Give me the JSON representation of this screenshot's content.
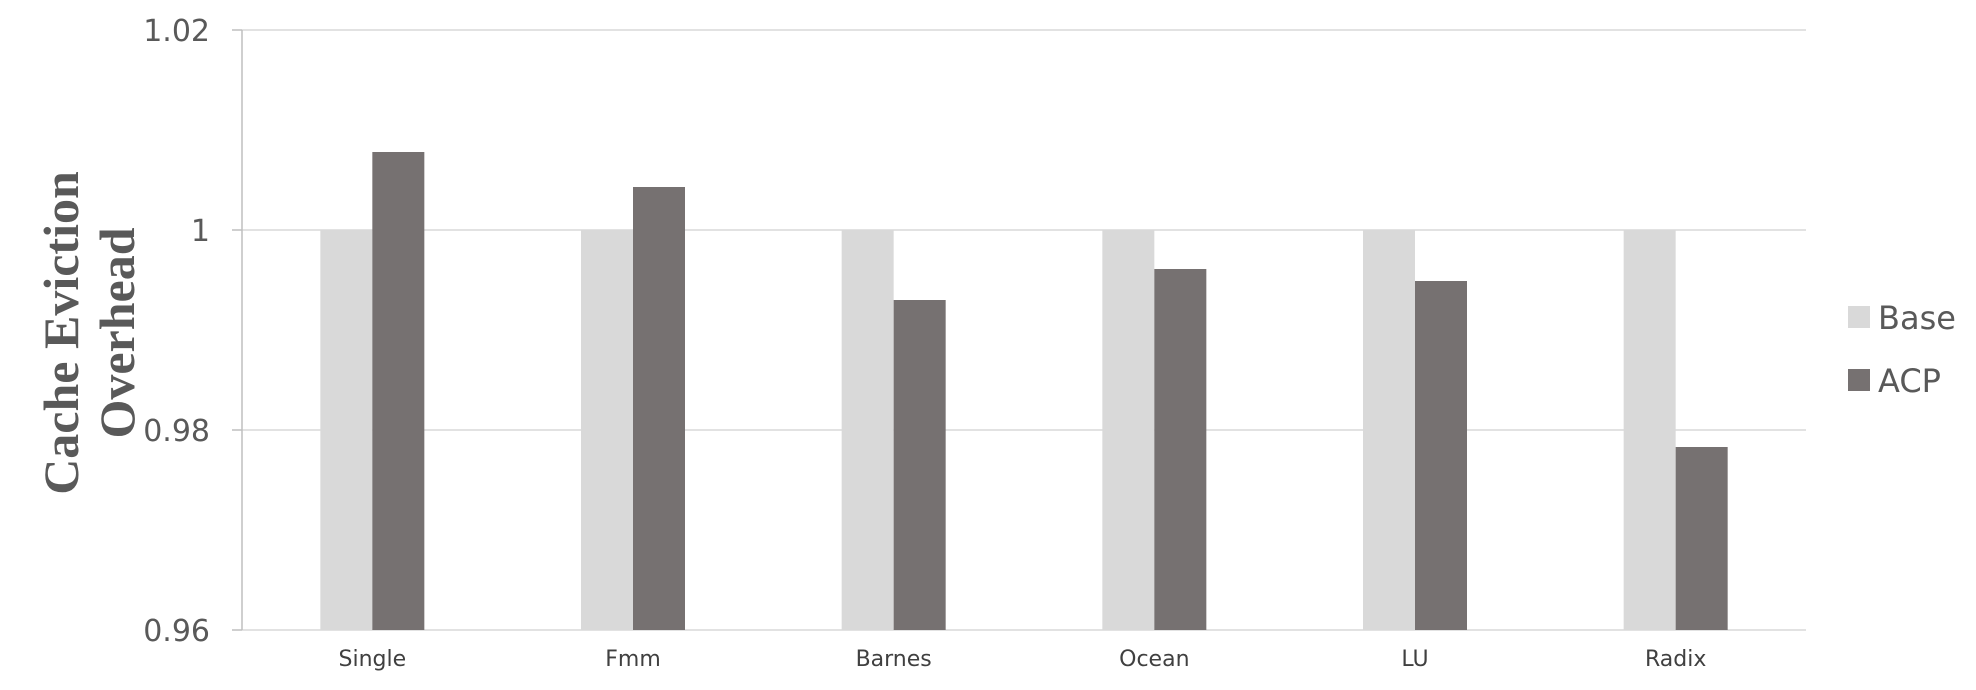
{
  "chart_data": {
    "type": "bar",
    "title": "",
    "xlabel": "",
    "ylabel": [
      "Cache Eviction",
      "Overhead"
    ],
    "categories": [
      "Single",
      "Fmm",
      "Barnes",
      "Ocean",
      "LU",
      "Radix"
    ],
    "series": [
      {
        "name": "Base",
        "color": "#d9d9d9",
        "values": [
          1.0,
          1.0,
          1.0,
          1.0,
          1.0,
          1.0
        ]
      },
      {
        "name": "ACP",
        "color": "#767171",
        "values": [
          1.0078,
          1.0043,
          0.993,
          0.9961,
          0.9949,
          0.9783
        ]
      }
    ],
    "ylim": [
      0.96,
      1.02
    ],
    "yticks": [
      0.96,
      0.98,
      1.0,
      1.02
    ],
    "ytick_labels": [
      "0.96",
      "0.98",
      "1",
      "1.02"
    ],
    "grid": true,
    "legend": "right"
  }
}
